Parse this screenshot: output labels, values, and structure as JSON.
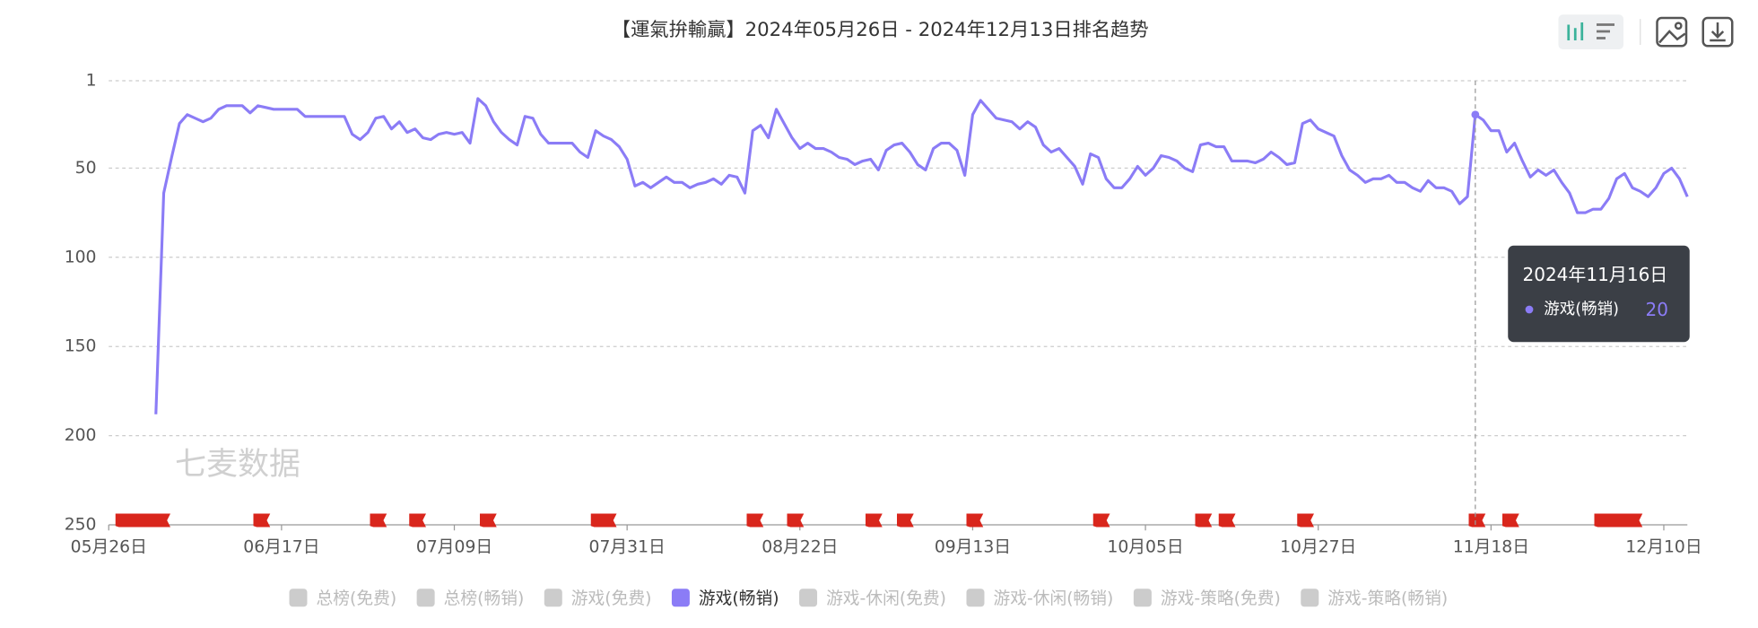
{
  "chart_data": {
    "type": "line",
    "title": "【運氣拚輸贏】2024年05月26日 - 2024年12月13日排名趋势",
    "watermark": "七麦数据",
    "ylim": [
      1,
      250
    ],
    "y_inverted": true,
    "yticks": [
      1,
      50,
      100,
      150,
      200,
      250
    ],
    "grid": true,
    "categories": [
      "05月26日",
      null,
      null,
      null,
      null,
      null,
      null,
      null,
      null,
      null,
      null,
      null,
      null,
      null,
      null,
      null,
      null,
      null,
      null,
      null,
      null,
      null,
      "06月17日",
      null,
      null,
      null,
      null,
      null,
      null,
      null,
      null,
      null,
      null,
      null,
      null,
      null,
      null,
      null,
      null,
      null,
      null,
      null,
      null,
      null,
      "07月09日",
      null,
      null,
      null,
      null,
      null,
      null,
      null,
      null,
      null,
      null,
      null,
      null,
      null,
      null,
      null,
      null,
      null,
      null,
      null,
      null,
      null,
      "07月31日",
      null,
      null,
      null,
      null,
      null,
      null,
      null,
      null,
      null,
      null,
      null,
      null,
      null,
      null,
      null,
      null,
      null,
      null,
      null,
      null,
      null,
      "08月22日",
      null,
      null,
      null,
      null,
      null,
      null,
      null,
      null,
      null,
      null,
      null,
      null,
      null,
      null,
      null,
      null,
      null,
      null,
      null,
      null,
      null,
      "09月13日",
      null,
      null,
      null,
      null,
      null,
      null,
      null,
      null,
      null,
      null,
      null,
      null,
      null,
      null,
      null,
      null,
      null,
      null,
      null,
      null,
      null,
      "10月05日",
      null,
      null,
      null,
      null,
      null,
      null,
      null,
      null,
      null,
      null,
      null,
      null,
      null,
      null,
      null,
      null,
      null,
      null,
      null,
      null,
      null,
      "10月27日",
      null,
      null,
      null,
      null,
      null,
      null,
      null,
      null,
      null,
      null,
      null,
      null,
      null,
      null,
      null,
      null,
      null,
      null,
      null,
      null,
      null,
      "11月18日",
      null,
      null,
      null,
      null,
      null,
      null,
      null,
      null,
      null,
      null,
      null,
      null,
      null,
      null,
      null,
      null,
      null,
      null,
      null,
      null,
      null,
      "12月10日",
      null,
      null,
      null
    ],
    "series": [
      {
        "name": "游戏(畅销)",
        "color": "#8b7cf6",
        "values": [
          null,
          null,
          null,
          null,
          null,
          null,
          188,
          64,
          44,
          25,
          20,
          22,
          24,
          22,
          17,
          15,
          15,
          15,
          19,
          15,
          16,
          17,
          17,
          17,
          17,
          21,
          21,
          21,
          21,
          21,
          21,
          31,
          34,
          30,
          22,
          21,
          28,
          24,
          30,
          28,
          33,
          34,
          31,
          30,
          31,
          30,
          36,
          11,
          15,
          24,
          30,
          34,
          37,
          21,
          22,
          31,
          36,
          36,
          36,
          36,
          41,
          44,
          29,
          32,
          34,
          38,
          45,
          60,
          58,
          61,
          58,
          55,
          58,
          58,
          61,
          59,
          58,
          56,
          59,
          54,
          55,
          64,
          29,
          26,
          33,
          17,
          25,
          33,
          39,
          36,
          39,
          39,
          41,
          44,
          45,
          48,
          46,
          45,
          51,
          40,
          37,
          36,
          41,
          48,
          51,
          39,
          36,
          36,
          40,
          54,
          20,
          12,
          17,
          22,
          23,
          24,
          28,
          24,
          27,
          37,
          41,
          39,
          44,
          49,
          59,
          42,
          44,
          56,
          61,
          61,
          56,
          49,
          54,
          50,
          43,
          44,
          46,
          50,
          52,
          37,
          36,
          38,
          38,
          46,
          46,
          46,
          47,
          45,
          41,
          44,
          48,
          47,
          25,
          23,
          28,
          30,
          32,
          43,
          51,
          54,
          58,
          56,
          56,
          54,
          58,
          58,
          61,
          63,
          57,
          61,
          61,
          63,
          70,
          66,
          20,
          23,
          29,
          29,
          41,
          36,
          46,
          55,
          51,
          54,
          51,
          58,
          64,
          75,
          75,
          73,
          73,
          67,
          56,
          53,
          61,
          63,
          66,
          61,
          53,
          50,
          56,
          66
        ]
      }
    ],
    "tooltip": {
      "date": "2024年11月16日"
    },
    "legend_before": [
      "总榜(免费)",
      "总榜(畅销)",
      "游戏(免费)"
    ],
    "legend_after": [
      "游戏-休闲(免费)",
      "游戏-休闲(畅销)",
      "游戏-策略(免费)",
      "游戏-策略(畅销)"
    ]
  }
}
